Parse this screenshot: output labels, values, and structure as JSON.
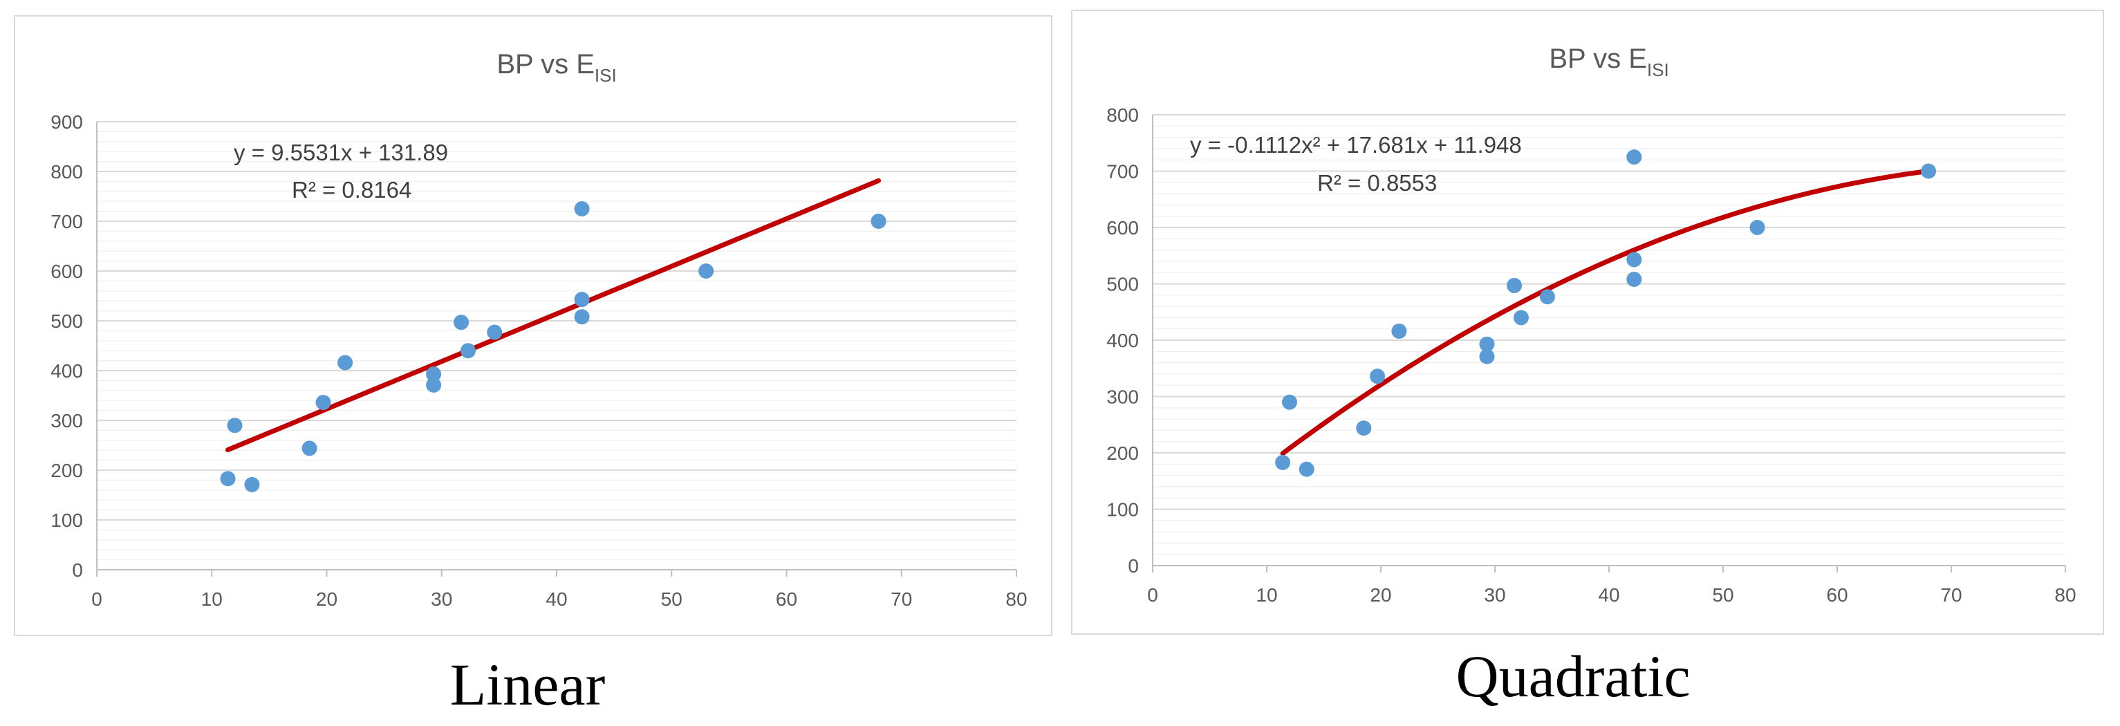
{
  "charts": [
    {
      "id": "linear",
      "caption": "Linear",
      "chart_data": {
        "type": "scatter",
        "title": "BP vs E",
        "title_subscript": "ISI",
        "xlim": [
          0,
          80
        ],
        "ylim": [
          0,
          900
        ],
        "x_ticks": [
          "0",
          "10",
          "20",
          "30",
          "40",
          "50",
          "60",
          "70",
          "80"
        ],
        "y_ticks": [
          "0",
          "100",
          "200",
          "300",
          "400",
          "500",
          "600",
          "700",
          "800",
          "900"
        ],
        "grid": true,
        "points": [
          {
            "x": 11.4,
            "y": 183
          },
          {
            "x": 12.0,
            "y": 290
          },
          {
            "x": 13.5,
            "y": 171
          },
          {
            "x": 18.5,
            "y": 244
          },
          {
            "x": 19.7,
            "y": 336
          },
          {
            "x": 21.6,
            "y": 416
          },
          {
            "x": 29.3,
            "y": 393
          },
          {
            "x": 29.3,
            "y": 371
          },
          {
            "x": 31.7,
            "y": 497
          },
          {
            "x": 32.3,
            "y": 440
          },
          {
            "x": 34.6,
            "y": 477
          },
          {
            "x": 42.2,
            "y": 725
          },
          {
            "x": 42.2,
            "y": 543
          },
          {
            "x": 42.2,
            "y": 508
          },
          {
            "x": 53.0,
            "y": 600
          },
          {
            "x": 68.0,
            "y": 700
          }
        ],
        "trendline": {
          "type": "linear",
          "coefficients": [
            131.89,
            9.5531
          ],
          "x_range": [
            11.4,
            68.0
          ],
          "color": "#c00000"
        },
        "equation": "y = 9.5531x + 131.89",
        "r_squared": "R² = 0.8164",
        "marker_color": "#5b9bd5"
      }
    },
    {
      "id": "quadratic",
      "caption": "Quadratic",
      "chart_data": {
        "type": "scatter",
        "title": "BP vs E",
        "title_subscript": "ISI",
        "xlim": [
          0,
          80
        ],
        "ylim": [
          0,
          800
        ],
        "x_ticks": [
          "0",
          "10",
          "20",
          "30",
          "40",
          "50",
          "60",
          "70",
          "80"
        ],
        "y_ticks": [
          "0",
          "100",
          "200",
          "300",
          "400",
          "500",
          "600",
          "700",
          "800"
        ],
        "grid": true,
        "points": [
          {
            "x": 11.4,
            "y": 183
          },
          {
            "x": 12.0,
            "y": 290
          },
          {
            "x": 13.5,
            "y": 171
          },
          {
            "x": 18.5,
            "y": 244
          },
          {
            "x": 19.7,
            "y": 336
          },
          {
            "x": 21.6,
            "y": 416
          },
          {
            "x": 29.3,
            "y": 393
          },
          {
            "x": 29.3,
            "y": 371
          },
          {
            "x": 31.7,
            "y": 497
          },
          {
            "x": 32.3,
            "y": 440
          },
          {
            "x": 34.6,
            "y": 477
          },
          {
            "x": 42.2,
            "y": 725
          },
          {
            "x": 42.2,
            "y": 543
          },
          {
            "x": 42.2,
            "y": 508
          },
          {
            "x": 53.0,
            "y": 600
          },
          {
            "x": 68.0,
            "y": 700
          }
        ],
        "trendline": {
          "type": "polynomial",
          "coefficients": [
            11.948,
            17.681,
            -0.1112
          ],
          "x_range": [
            11.4,
            68.0
          ],
          "color": "#c00000"
        },
        "equation": "y = -0.1112x² + 17.681x + 11.948",
        "r_squared": "R² = 0.8553",
        "marker_color": "#5b9bd5"
      }
    }
  ]
}
